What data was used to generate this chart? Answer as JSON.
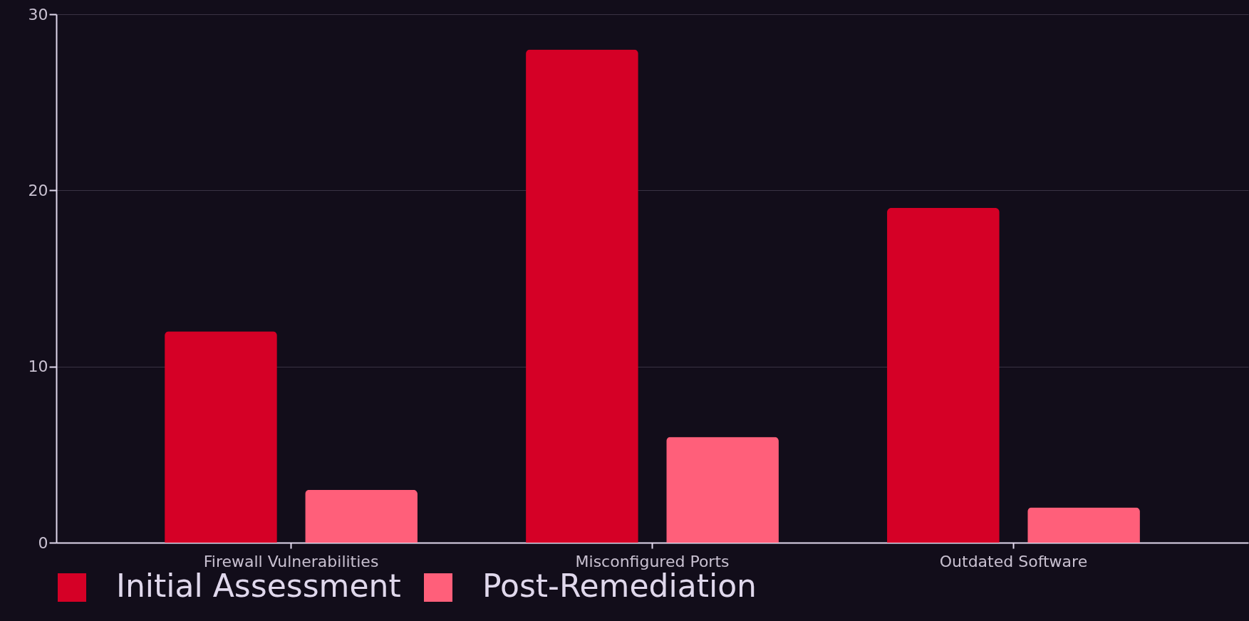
{
  "chart_data": {
    "type": "bar",
    "categories": [
      "Firewall Vulnerabilities",
      "Misconfigured Ports",
      "Outdated Software"
    ],
    "series": [
      {
        "name": "Initial Assessment",
        "color": "#d50026",
        "values": [
          12,
          28,
          19
        ]
      },
      {
        "name": "Post-Remediation",
        "color": "#ff5f7a",
        "values": [
          3,
          6,
          2
        ]
      }
    ],
    "ylim": [
      0,
      30
    ],
    "yticks": [
      0,
      10,
      20,
      30
    ],
    "grid": "y",
    "legend": "bottom"
  }
}
